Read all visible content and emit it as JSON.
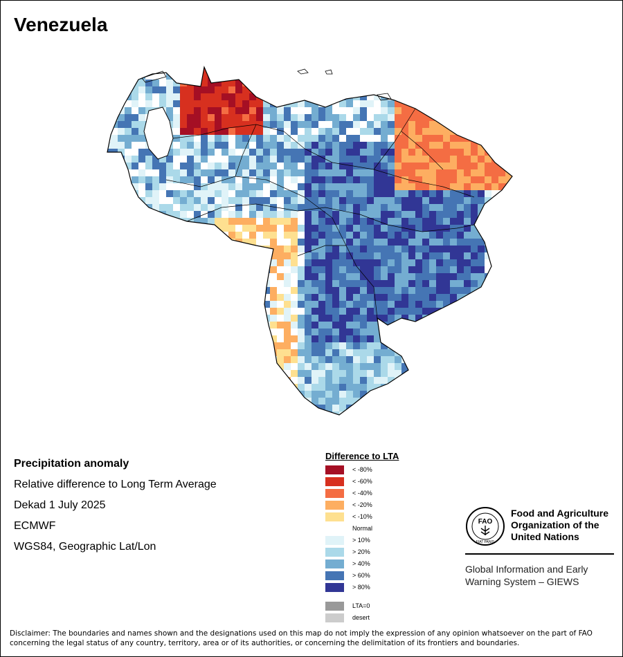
{
  "map": {
    "title": "Venezuela",
    "info": {
      "heading": "Precipitation anomaly",
      "line1": "Relative difference to Long Term Average",
      "line2": "Dekad 1 July 2025",
      "line3": "ECMWF",
      "line4": "WGS84, Geographic Lat/Lon"
    },
    "legend": {
      "title": "Difference to LTA",
      "classes": [
        {
          "label": "< -80%",
          "color": "#a50f24"
        },
        {
          "label": "< -60%",
          "color": "#d7301f"
        },
        {
          "label": "< -40%",
          "color": "#f46d43"
        },
        {
          "label": "< -20%",
          "color": "#fdae61"
        },
        {
          "label": "< -10%",
          "color": "#fee090"
        },
        {
          "label": "Normal",
          "color": "#ffffff"
        },
        {
          "label": "> 10%",
          "color": "#e0f3f8"
        },
        {
          "label": "> 20%",
          "color": "#abd9e9"
        },
        {
          "label": "> 40%",
          "color": "#74add1"
        },
        {
          "label": "> 60%",
          "color": "#4575b4"
        },
        {
          "label": "> 80%",
          "color": "#313695"
        }
      ],
      "extra": [
        {
          "label": "LTA=0",
          "color": "#999999"
        },
        {
          "label": "desert",
          "color": "#cccccc"
        }
      ]
    },
    "org": {
      "logo_top": "FAO",
      "logo_bottom": "FIAT PANIS",
      "name": "Food and Agriculture Organization of the United Nations",
      "system": "Global Information and Early Warning System – GIEWS"
    },
    "disclaimer": "Disclaimer: The boundaries and names shown and the designations used on this map do not imply the expression of any opinion whatsoever on the part of FAO concerning the legal status of any country, territory, area or of its authorities, or concerning the delimitation of its frontiers and boundaries."
  }
}
